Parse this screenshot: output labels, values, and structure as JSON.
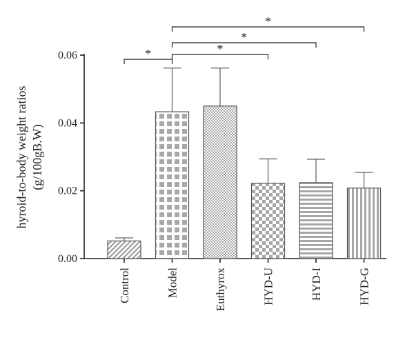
{
  "chart_data": {
    "type": "bar",
    "categories": [
      "Control",
      "Model",
      "Euthyrox",
      "HYD-U",
      "HYD-I",
      "HYD-G"
    ],
    "values": [
      0.0052,
      0.0433,
      0.045,
      0.0222,
      0.0224,
      0.0208
    ],
    "errors": [
      0.0009,
      0.0129,
      0.0112,
      0.0072,
      0.0069,
      0.0046
    ],
    "patterns": [
      "diagonal-hatch",
      "checker-large",
      "checker-fine",
      "checker-medium",
      "horizontal-lines",
      "vertical-lines"
    ],
    "ylabel_lines": [
      "hyroid-to-body weight ratios",
      "(g/100gB.W)"
    ],
    "xlabel": "",
    "ylim": [
      0,
      0.06
    ],
    "yticks": [
      0.0,
      0.02,
      0.04,
      0.06
    ],
    "ytick_labels": [
      "0.00",
      "0.02",
      "0.04",
      "0.06"
    ],
    "grid": false,
    "significance": [
      {
        "from": "Control",
        "to": "Model",
        "label": "*"
      },
      {
        "from": "Model",
        "to": "HYD-U",
        "label": "*"
      },
      {
        "from": "Model",
        "to": "HYD-I",
        "label": "*"
      },
      {
        "from": "Model",
        "to": "HYD-G",
        "label": "*"
      }
    ],
    "colors": {
      "bar_fill": "#c8c8c8",
      "bar_pattern": "#9e9e9e",
      "axis": "#222222"
    }
  }
}
